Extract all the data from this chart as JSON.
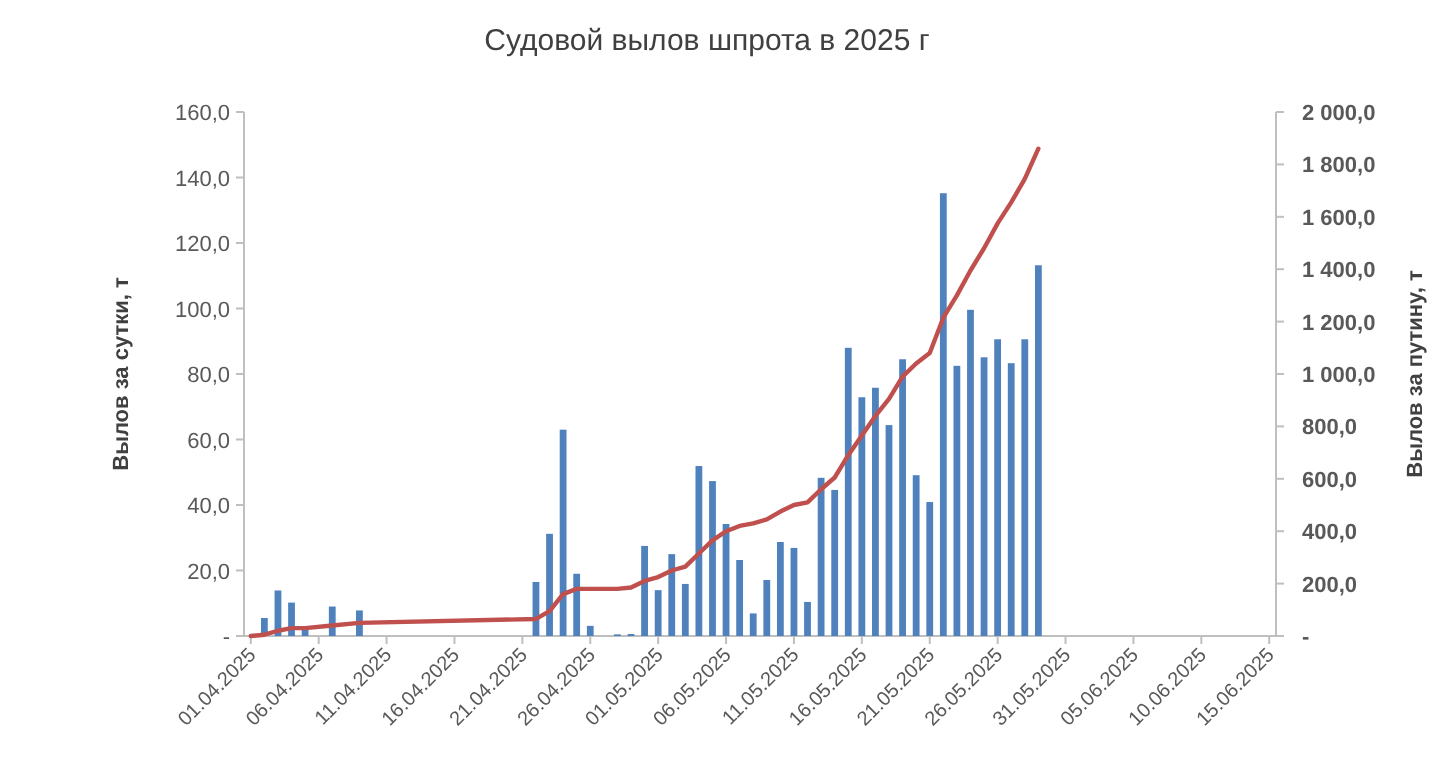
{
  "chart_data": {
    "type": "bar",
    "title": "Судовой вылов шпрота в 2025 г",
    "ylabel": "Вылов за сутки,  т",
    "y2label": "Вылов за путину, т",
    "x": [
      "2025-04-01",
      "2025-04-02",
      "2025-04-03",
      "2025-04-04",
      "2025-04-05",
      "2025-04-07",
      "2025-04-09",
      "2025-04-22",
      "2025-04-23",
      "2025-04-24",
      "2025-04-25",
      "2025-04-26",
      "2025-04-28",
      "2025-04-29",
      "2025-04-30",
      "2025-05-01",
      "2025-05-02",
      "2025-05-03",
      "2025-05-04",
      "2025-05-05",
      "2025-05-06",
      "2025-05-07",
      "2025-05-08",
      "2025-05-09",
      "2025-05-10",
      "2025-05-11",
      "2025-05-12",
      "2025-05-13",
      "2025-05-14",
      "2025-05-15",
      "2025-05-16",
      "2025-05-17",
      "2025-05-18",
      "2025-05-19",
      "2025-05-20",
      "2025-05-21",
      "2025-05-22",
      "2025-05-23",
      "2025-05-24",
      "2025-05-25",
      "2025-05-26",
      "2025-05-27",
      "2025-05-28",
      "2025-05-29"
    ],
    "series": [
      {
        "color": "#4f81bd",
        "values": [
          null,
          5.5,
          13.9,
          10.2,
          2.2,
          9,
          7.8,
          16.5,
          31.2,
          63,
          19,
          3.1,
          0.5,
          0.6,
          27.5,
          14,
          25,
          15.9,
          51.9,
          47.3,
          34.2,
          23.2,
          6.9,
          17.1,
          28.7,
          26.9,
          10.4,
          48.3,
          44.6,
          88,
          72.9,
          75.8,
          64.4,
          84.5,
          49.1,
          40.9,
          135.2,
          82.5,
          99.6,
          85.1,
          90.6,
          83.3,
          90.6,
          113.2
        ]
      },
      {
        "type": "line",
        "axis": "y2",
        "color": "#c0504d",
        "values": [
          0,
          5,
          20,
          30,
          30,
          40,
          50,
          65,
          95,
          160,
          180,
          180,
          180,
          185,
          210,
          225,
          250,
          265,
          315,
          365,
          400,
          420,
          430,
          445,
          475,
          500,
          510,
          560,
          605,
          690,
          765,
          840,
          905,
          990,
          1040,
          1080,
          1215,
          1300,
          1395,
          1480,
          1575,
          1655,
          1745,
          1860
        ]
      }
    ],
    "xlim": [
      "2025-03-31T12:00",
      "2025-06-15T12:00"
    ],
    "xticks": [
      {
        "value": "2025-04-01",
        "label": "01.04.2025"
      },
      {
        "value": "2025-04-06",
        "label": "06.04.2025"
      },
      {
        "value": "2025-04-11",
        "label": "11.04.2025"
      },
      {
        "value": "2025-04-16",
        "label": "16.04.2025"
      },
      {
        "value": "2025-04-21",
        "label": "21.04.2025"
      },
      {
        "value": "2025-04-26",
        "label": "26.04.2025"
      },
      {
        "value": "2025-05-01",
        "label": "01.05.2025"
      },
      {
        "value": "2025-05-06",
        "label": "06.05.2025"
      },
      {
        "value": "2025-05-11",
        "label": "11.05.2025"
      },
      {
        "value": "2025-05-16",
        "label": "16.05.2025"
      },
      {
        "value": "2025-05-21",
        "label": "21.05.2025"
      },
      {
        "value": "2025-05-26",
        "label": "26.05.2025"
      },
      {
        "value": "2025-05-31",
        "label": "31.05.2025"
      },
      {
        "value": "2025-06-05",
        "label": "05.06.2025"
      },
      {
        "value": "2025-06-10",
        "label": "10.06.2025"
      },
      {
        "value": "2025-06-15",
        "label": "15.06.2025"
      }
    ],
    "ylim": [
      0,
      160
    ],
    "yticks": [
      {
        "value": 0,
        "label": "-"
      },
      {
        "value": 20,
        "label": "20,0"
      },
      {
        "value": 40,
        "label": "40,0"
      },
      {
        "value": 60,
        "label": "60,0"
      },
      {
        "value": 80,
        "label": "80,0"
      },
      {
        "value": 100,
        "label": "100,0"
      },
      {
        "value": 120,
        "label": "120,0"
      },
      {
        "value": 140,
        "label": "140,0"
      },
      {
        "value": 160,
        "label": "160,0"
      }
    ],
    "y2lim": [
      0,
      2000
    ],
    "y2ticks": [
      {
        "value": 0,
        "label": "-"
      },
      {
        "value": 200,
        "label": "200,0"
      },
      {
        "value": 400,
        "label": "400,0"
      },
      {
        "value": 600,
        "label": "600,0"
      },
      {
        "value": 800,
        "label": "800,0"
      },
      {
        "value": 1000,
        "label": "1 000,0"
      },
      {
        "value": 1200,
        "label": "1 200,0"
      },
      {
        "value": 1400,
        "label": "1 400,0"
      },
      {
        "value": 1600,
        "label": "1 600,0"
      },
      {
        "value": 1800,
        "label": "1 800,0"
      },
      {
        "value": 2000,
        "label": "2 000,0"
      }
    ]
  }
}
